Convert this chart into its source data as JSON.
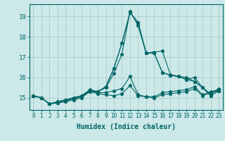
{
  "title": "",
  "xlabel": "Humidex (Indice chaleur)",
  "ylabel": "",
  "bg_color": "#cce8e8",
  "line_color": "#006666",
  "grid_color": "#aacccc",
  "x_ticks": [
    0,
    1,
    2,
    3,
    4,
    5,
    6,
    7,
    8,
    9,
    10,
    11,
    12,
    13,
    14,
    15,
    16,
    17,
    18,
    19,
    20,
    21,
    22,
    23
  ],
  "y_ticks": [
    15,
    16,
    17,
    18,
    19
  ],
  "ylim": [
    14.4,
    19.6
  ],
  "xlim": [
    -0.5,
    23.5
  ],
  "series": [
    [
      15.1,
      15.0,
      14.7,
      14.75,
      14.8,
      14.9,
      15.0,
      15.3,
      15.2,
      15.15,
      15.1,
      15.2,
      15.6,
      15.1,
      15.05,
      15.0,
      15.15,
      15.2,
      15.25,
      15.3,
      15.45,
      15.1,
      15.25,
      15.35
    ],
    [
      15.1,
      15.0,
      14.7,
      14.75,
      14.85,
      14.95,
      15.05,
      15.35,
      15.25,
      15.25,
      15.35,
      15.45,
      16.05,
      15.15,
      15.05,
      15.05,
      15.25,
      15.3,
      15.35,
      15.4,
      15.55,
      15.15,
      15.3,
      15.4
    ],
    [
      15.1,
      15.0,
      14.7,
      14.8,
      14.9,
      15.0,
      15.1,
      15.4,
      15.3,
      15.5,
      16.2,
      17.15,
      19.25,
      18.55,
      17.2,
      17.25,
      17.3,
      16.15,
      16.05,
      16.0,
      15.8,
      15.5,
      15.1,
      15.35
    ],
    [
      15.1,
      15.0,
      14.7,
      14.8,
      14.9,
      15.0,
      15.1,
      15.35,
      15.3,
      15.55,
      16.45,
      17.7,
      19.2,
      18.7,
      17.2,
      17.2,
      16.25,
      16.1,
      16.05,
      15.9,
      16.0,
      15.5,
      15.2,
      15.45
    ],
    [
      15.1,
      15.0,
      14.7,
      14.8,
      14.9,
      15.0,
      15.1,
      15.35,
      15.3,
      15.55,
      16.45,
      17.7,
      19.2,
      18.7,
      17.2,
      17.2,
      16.25,
      16.1,
      16.05,
      15.9,
      15.8,
      15.5,
      15.1,
      15.35
    ]
  ]
}
